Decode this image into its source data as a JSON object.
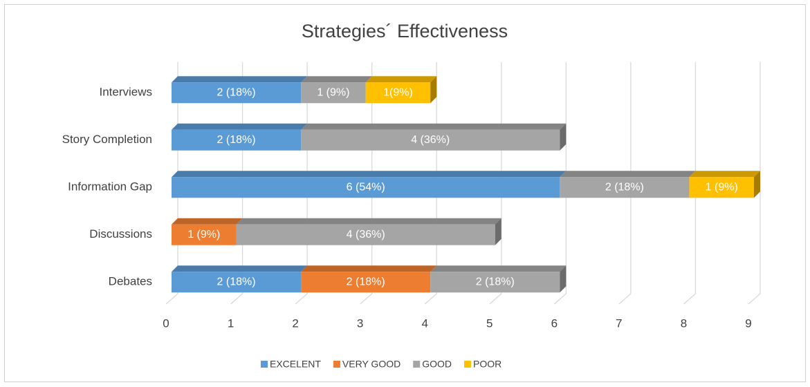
{
  "chart_data": {
    "type": "bar",
    "orientation": "horizontal",
    "stacked": true,
    "title": "Strategies´ Effectiveness",
    "categories": [
      "Interviews",
      "Story Completion",
      "Information Gap",
      "Discussions",
      "Debates"
    ],
    "series": [
      {
        "name": "EXCELENT",
        "color": "#5b9bd5",
        "values": [
          2,
          2,
          6,
          null,
          2
        ],
        "value_labels": [
          "2 (18%)",
          "2 (18%)",
          "6 (54%)",
          null,
          "2 (18%)"
        ]
      },
      {
        "name": "VERY GOOD",
        "color": "#ed7d31",
        "values": [
          null,
          null,
          null,
          1,
          2
        ],
        "value_labels": [
          null,
          null,
          null,
          "1 (9%)",
          "2 (18%)"
        ]
      },
      {
        "name": "GOOD",
        "color": "#a5a5a5",
        "values": [
          1,
          4,
          2,
          4,
          2
        ],
        "value_labels": [
          "1 (9%)",
          "4 (36%)",
          "2 (18%)",
          "4 (36%)",
          "2 (18%)"
        ]
      },
      {
        "name": "POOR",
        "color": "#ffc000",
        "values": [
          1,
          null,
          1,
          null,
          null
        ],
        "value_labels": [
          "1(9%)",
          null,
          "1 (9%)",
          null,
          null
        ]
      }
    ],
    "xlim": [
      0,
      9
    ],
    "xticks": [
      0,
      1,
      2,
      3,
      4,
      5,
      6,
      7,
      8,
      9
    ],
    "grid": true,
    "legend": "bottom"
  }
}
